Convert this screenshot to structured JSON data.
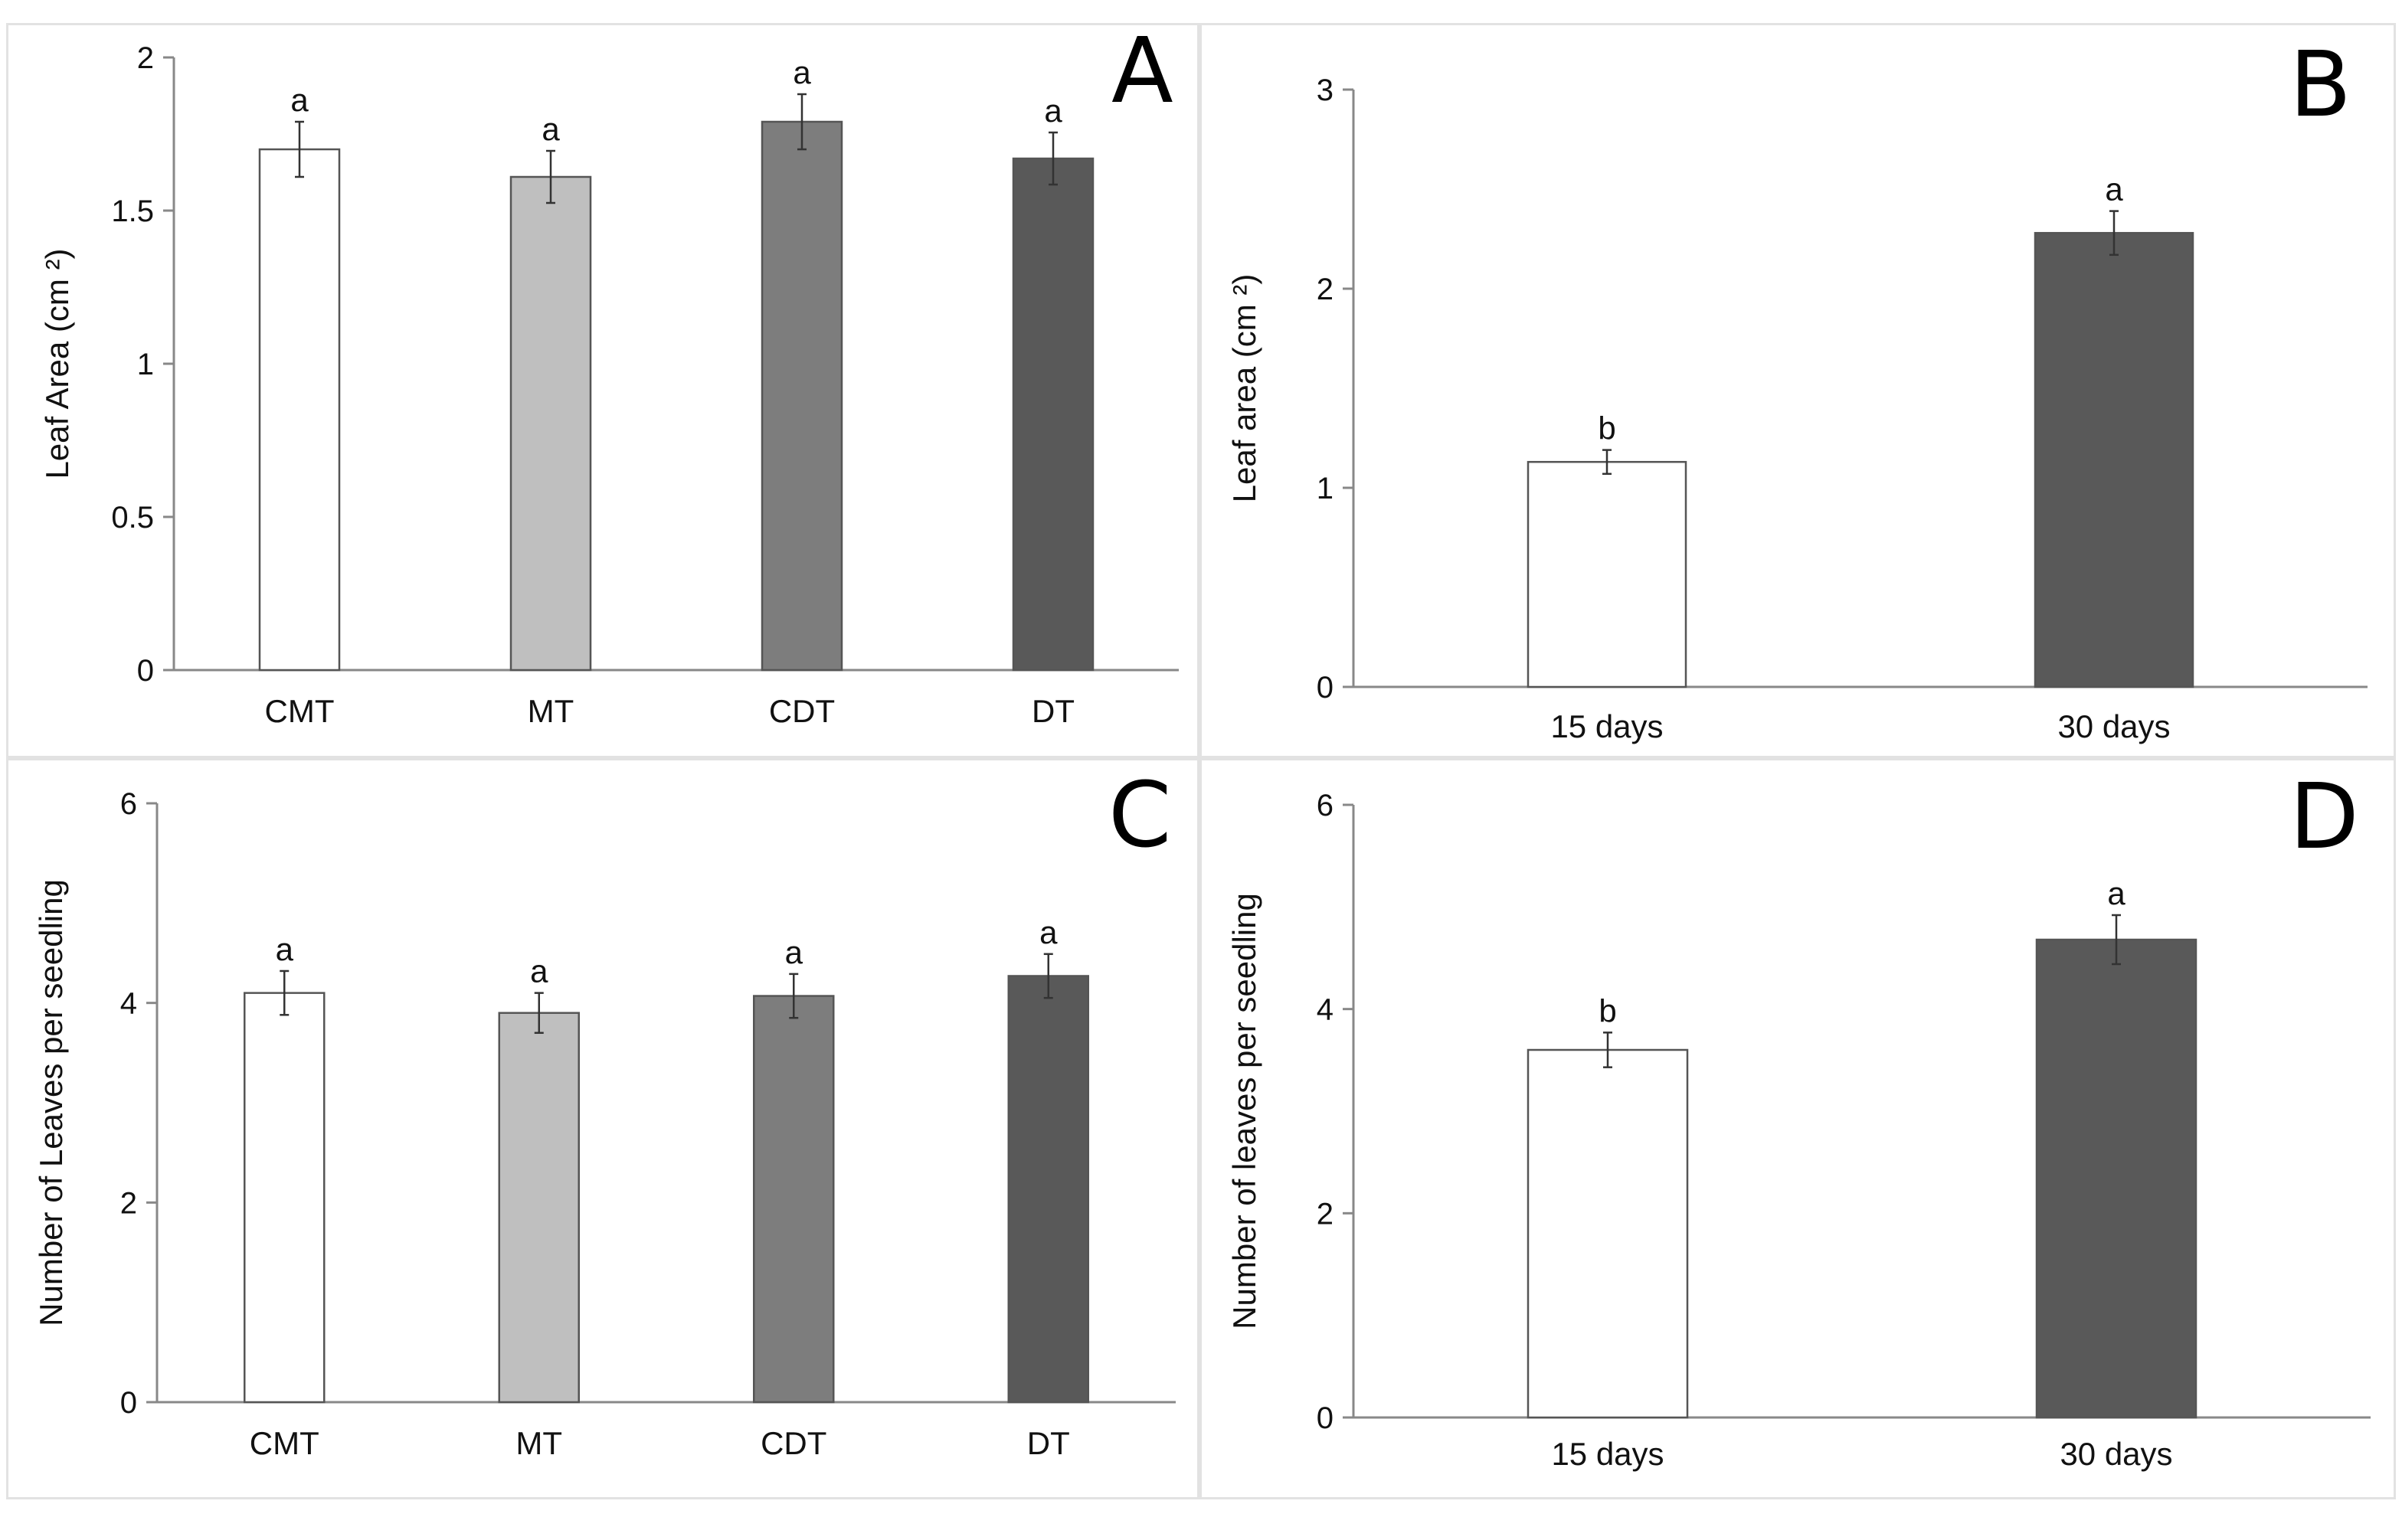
{
  "colors": {
    "CMT": "#ffffff",
    "MT": "#bfbfbf",
    "CDT": "#7d7d7d",
    "DT": "#595959",
    "15 days": "#ffffff",
    "30 days": "#595959"
  },
  "chart_data": [
    {
      "id": "A",
      "type": "bar",
      "panel_label": "A",
      "ylabel": "Leaf Area (cm ²)",
      "xlabel": "",
      "ylim": [
        0,
        2
      ],
      "yticks": [
        0,
        0.5,
        1,
        1.5,
        2
      ],
      "ytick_labels": [
        "0",
        "0.5",
        "1",
        "1.5",
        "2"
      ],
      "categories": [
        "CMT",
        "MT",
        "CDT",
        "DT"
      ],
      "values": [
        1.7,
        1.61,
        1.79,
        1.67
      ],
      "errors": [
        0.09,
        0.085,
        0.09,
        0.085
      ],
      "letters": [
        "a",
        "a",
        "a",
        "a"
      ]
    },
    {
      "id": "B",
      "type": "bar",
      "panel_label": "B",
      "ylabel": "Leaf area (cm ²)",
      "xlabel": "",
      "ylim": [
        0,
        3
      ],
      "yticks": [
        0,
        1,
        2,
        3
      ],
      "ytick_labels": [
        "0",
        "1",
        "2",
        "3"
      ],
      "categories": [
        "15 days",
        "30 days"
      ],
      "values": [
        1.13,
        2.28
      ],
      "errors": [
        0.06,
        0.11
      ],
      "letters": [
        "b",
        "a"
      ]
    },
    {
      "id": "C",
      "type": "bar",
      "panel_label": "C",
      "ylabel": "Number of Leaves per seedling",
      "xlabel": "",
      "ylim": [
        0,
        6
      ],
      "yticks": [
        0,
        2,
        4,
        6
      ],
      "ytick_labels": [
        "0",
        "2",
        "4",
        "6"
      ],
      "categories": [
        "CMT",
        "MT",
        "CDT",
        "DT"
      ],
      "values": [
        4.1,
        3.9,
        4.07,
        4.27
      ],
      "errors": [
        0.22,
        0.2,
        0.22,
        0.22
      ],
      "letters": [
        "a",
        "a",
        "a",
        "a"
      ]
    },
    {
      "id": "D",
      "type": "bar",
      "panel_label": "D",
      "ylabel": "Number of leaves per seedling",
      "xlabel": "",
      "ylim": [
        0,
        6
      ],
      "yticks": [
        0,
        2,
        4,
        6
      ],
      "ytick_labels": [
        "0",
        "2",
        "4",
        "6"
      ],
      "categories": [
        "15 days",
        "30 days"
      ],
      "values": [
        3.6,
        4.68
      ],
      "errors": [
        0.17,
        0.24
      ],
      "letters": [
        "b",
        "a"
      ]
    }
  ]
}
